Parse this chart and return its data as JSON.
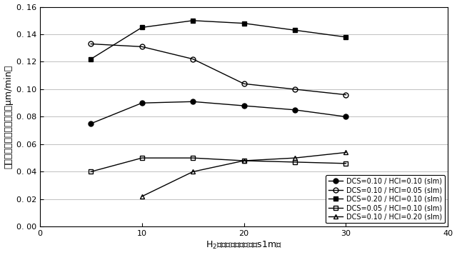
{
  "series": [
    {
      "label": "DCS=0.10 / HCl=0.10 (slm)",
      "x": [
        5,
        10,
        15,
        20,
        25,
        30
      ],
      "y": [
        0.075,
        0.09,
        0.091,
        0.088,
        0.085,
        0.08
      ],
      "marker": "o",
      "fillstyle": "full",
      "color": "black",
      "markersize": 5
    },
    {
      "label": "DCS=0.10 / HCl=0.05 (slm)",
      "x": [
        5,
        10,
        15,
        20,
        25,
        30
      ],
      "y": [
        0.133,
        0.131,
        0.122,
        0.104,
        0.1,
        0.096
      ],
      "marker": "o",
      "fillstyle": "none",
      "color": "black",
      "markersize": 5
    },
    {
      "label": "DCS=0.20 / HCl=0.10 (slm)",
      "x": [
        5,
        10,
        15,
        20,
        25,
        30
      ],
      "y": [
        0.122,
        0.145,
        0.15,
        0.148,
        0.143,
        0.138
      ],
      "marker": "s",
      "fillstyle": "full",
      "color": "black",
      "markersize": 5
    },
    {
      "label": "DCS=0.05 / HCl=0.10 (slm)",
      "x": [
        5,
        10,
        15,
        20,
        25,
        30
      ],
      "y": [
        0.04,
        0.05,
        0.05,
        0.048,
        0.047,
        0.046
      ],
      "marker": "s",
      "fillstyle": "none",
      "color": "black",
      "markersize": 5
    },
    {
      "label": "DCS=0.10 / HCl=0.20 (slm)",
      "x": [
        10,
        15,
        20,
        25,
        30
      ],
      "y": [
        0.022,
        0.04,
        0.048,
        0.05,
        0.054
      ],
      "marker": "^",
      "fillstyle": "none",
      "color": "black",
      "markersize": 5
    }
  ],
  "xlabel": "H$_2$キャリアガス流量（s1m）",
  "ylabel": "エピタキシャル成長速度（μm/min）",
  "xlim": [
    0,
    40
  ],
  "ylim": [
    0.0,
    0.16
  ],
  "yticks": [
    0.0,
    0.02,
    0.04,
    0.06,
    0.08,
    0.1,
    0.12,
    0.14,
    0.16
  ],
  "xticks": [
    0,
    10,
    20,
    30,
    40
  ]
}
